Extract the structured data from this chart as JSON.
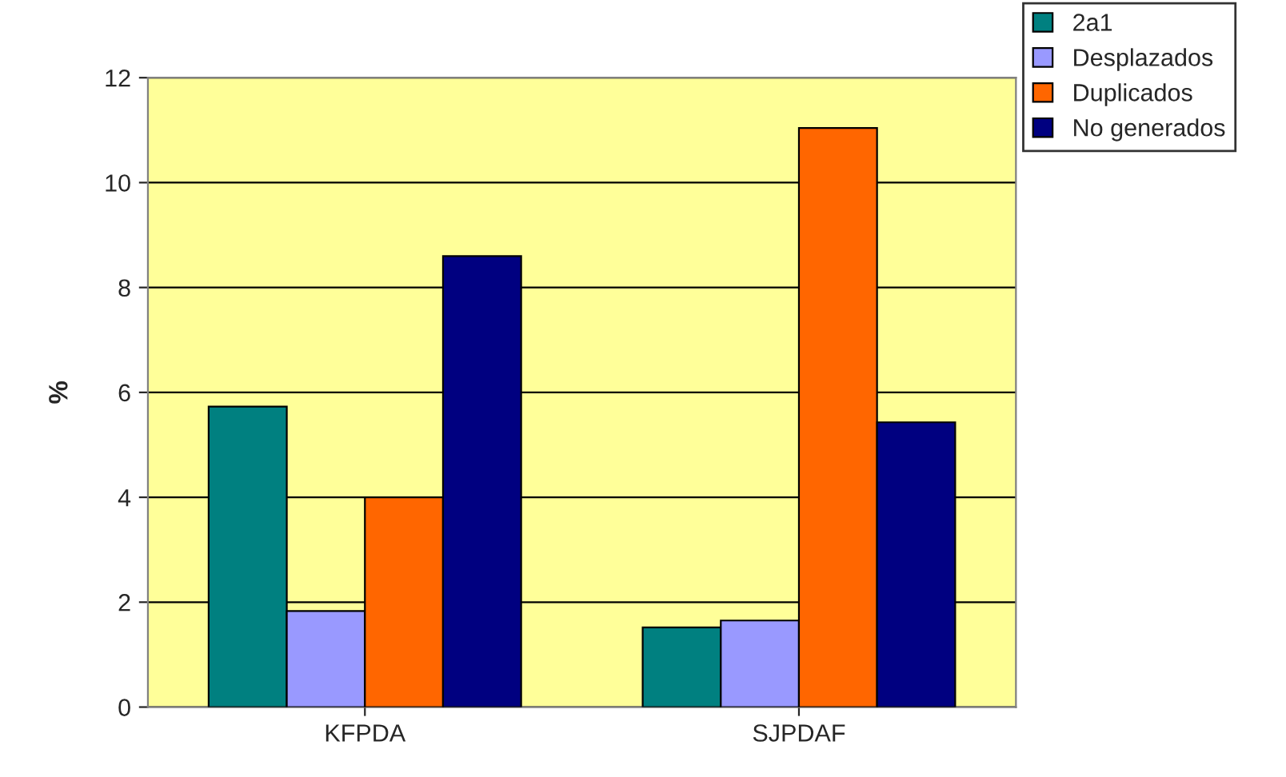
{
  "chart_data": {
    "type": "bar",
    "ylabel": "%",
    "categories": [
      "KFPDA",
      "SJPDAF"
    ],
    "series": [
      {
        "name": "2a1",
        "color": "#008080",
        "values": [
          5.73,
          1.52
        ]
      },
      {
        "name": "Desplazados",
        "color": "#9999ff",
        "values": [
          1.83,
          1.65
        ]
      },
      {
        "name": "Duplicados",
        "color": "#ff6600",
        "values": [
          4.0,
          11.04
        ]
      },
      {
        "name": "No generados",
        "color": "#000080",
        "values": [
          8.6,
          5.43
        ]
      }
    ],
    "ylim": [
      0,
      12
    ],
    "yticks": [
      0,
      2,
      4,
      6,
      8,
      10,
      12
    ],
    "grid": "y",
    "legend": "top right"
  }
}
